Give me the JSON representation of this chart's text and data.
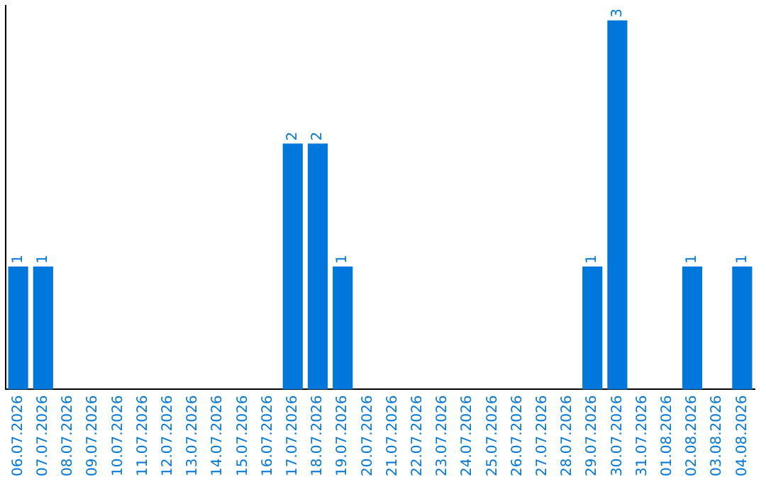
{
  "chart_data": {
    "type": "bar",
    "categories": [
      "06.07.2026",
      "07.07.2026",
      "08.07.2026",
      "09.07.2026",
      "10.07.2026",
      "11.07.2026",
      "12.07.2026",
      "13.07.2026",
      "14.07.2026",
      "15.07.2026",
      "16.07.2026",
      "17.07.2026",
      "18.07.2026",
      "19.07.2026",
      "20.07.2026",
      "21.07.2026",
      "22.07.2026",
      "23.07.2026",
      "24.07.2026",
      "25.07.2026",
      "26.07.2026",
      "27.07.2026",
      "28.07.2026",
      "29.07.2026",
      "30.07.2026",
      "31.07.2026",
      "01.08.2026",
      "02.08.2026",
      "03.08.2026",
      "04.08.2026"
    ],
    "values": [
      1,
      1,
      0,
      0,
      0,
      0,
      0,
      0,
      0,
      0,
      0,
      2,
      2,
      1,
      0,
      0,
      0,
      0,
      0,
      0,
      0,
      0,
      0,
      1,
      3,
      0,
      0,
      1,
      0,
      1
    ],
    "value_labels": [
      "1",
      "1",
      null,
      null,
      null,
      null,
      null,
      null,
      null,
      null,
      null,
      "2",
      "2",
      "1",
      null,
      null,
      null,
      null,
      null,
      null,
      null,
      null,
      null,
      "1",
      "3",
      null,
      null,
      "1",
      null,
      "1"
    ],
    "color": "#0077dd",
    "ylim": [
      0,
      3.12
    ],
    "tick_labels": "x",
    "grid": false,
    "legend": false
  }
}
